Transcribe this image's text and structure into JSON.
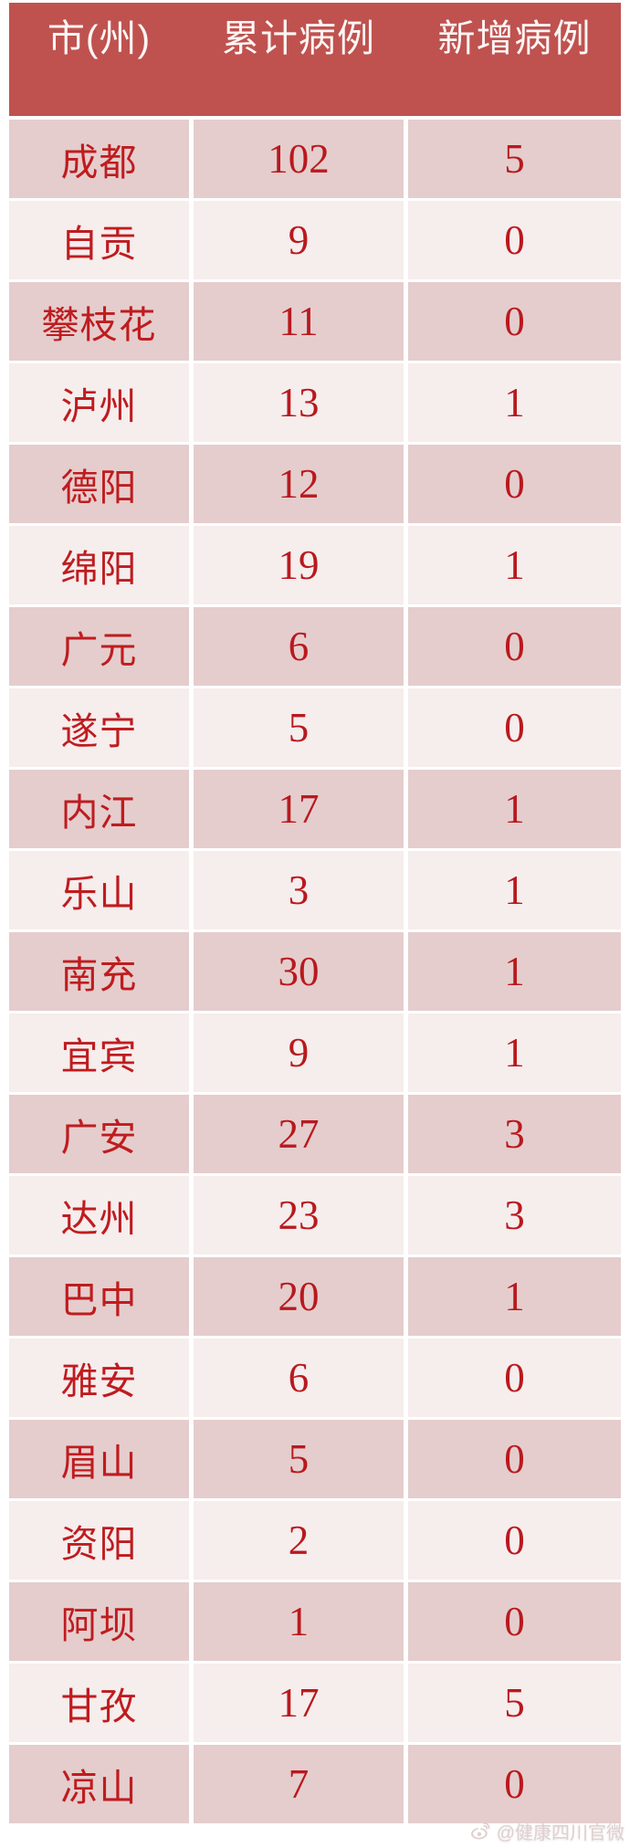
{
  "colors": {
    "header_bg": "#bf524f",
    "header_text": "#fdf6f5",
    "row_dark": "#e5cdcd",
    "row_light": "#f6eded",
    "text_red": "#bf1c1f",
    "num_red": "#b9191e"
  },
  "watermark": {
    "icon": "weibo-icon",
    "handle": "@健康四川官微"
  },
  "chart_data": {
    "type": "table",
    "columns": [
      "市(州)",
      "累计病例",
      "新增病例"
    ],
    "rows": [
      {
        "city": "成都",
        "cumulative": 102,
        "new": 5
      },
      {
        "city": "自贡",
        "cumulative": 9,
        "new": 0
      },
      {
        "city": "攀枝花",
        "cumulative": 11,
        "new": 0
      },
      {
        "city": "泸州",
        "cumulative": 13,
        "new": 1
      },
      {
        "city": "德阳",
        "cumulative": 12,
        "new": 0
      },
      {
        "city": "绵阳",
        "cumulative": 19,
        "new": 1
      },
      {
        "city": "广元",
        "cumulative": 6,
        "new": 0
      },
      {
        "city": "遂宁",
        "cumulative": 5,
        "new": 0
      },
      {
        "city": "内江",
        "cumulative": 17,
        "new": 1
      },
      {
        "city": "乐山",
        "cumulative": 3,
        "new": 1
      },
      {
        "city": "南充",
        "cumulative": 30,
        "new": 1
      },
      {
        "city": "宜宾",
        "cumulative": 9,
        "new": 1
      },
      {
        "city": "广安",
        "cumulative": 27,
        "new": 3
      },
      {
        "city": "达州",
        "cumulative": 23,
        "new": 3
      },
      {
        "city": "巴中",
        "cumulative": 20,
        "new": 1
      },
      {
        "city": "雅安",
        "cumulative": 6,
        "new": 0
      },
      {
        "city": "眉山",
        "cumulative": 5,
        "new": 0
      },
      {
        "city": "资阳",
        "cumulative": 2,
        "new": 0
      },
      {
        "city": "阿坝",
        "cumulative": 1,
        "new": 0
      },
      {
        "city": "甘孜",
        "cumulative": 17,
        "new": 5
      },
      {
        "city": "凉山",
        "cumulative": 7,
        "new": 0
      }
    ]
  }
}
